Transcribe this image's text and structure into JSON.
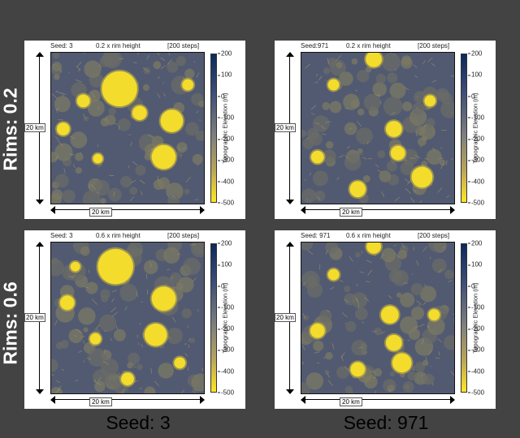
{
  "row_labels": [
    "Rims: 0.2",
    "Rims: 0.6"
  ],
  "col_labels": [
    "Seed: 3",
    "Seed: 971"
  ],
  "axis_label": "20 km",
  "colorbar": {
    "label": "Topographic Elevation (m)",
    "ticks": [
      "200",
      "100",
      "0",
      "-100",
      "-200",
      "-300",
      "-400",
      "-500"
    ],
    "colors": {
      "high": "#0b2a5c",
      "mid": "#7f7f7f",
      "low": "#ffe623"
    }
  },
  "panels": [
    {
      "seed": "Seed: 3",
      "rim": "0.2 x rim height",
      "steps": "[200 steps]"
    },
    {
      "seed": "Seed:971",
      "rim": "0.2 x rim height",
      "steps": "[200 steps]"
    },
    {
      "seed": "Seed: 3",
      "rim": "0.6 x rim height",
      "steps": "[200 steps]"
    },
    {
      "seed": "Seed: 971",
      "rim": "0.6 x rim height",
      "steps": "[200 steps]"
    }
  ]
}
